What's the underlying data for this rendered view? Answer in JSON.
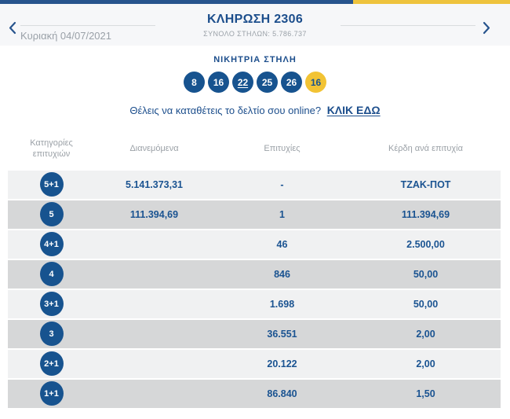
{
  "colors": {
    "bar_blue": "#27548d",
    "bar_yellow": "#eec33d",
    "title_blue": "#1c4e8c",
    "ball_blue": "#17538f",
    "ball_yellow": "#f2c334",
    "row_light": "#f0f1f2",
    "row_dark": "#d6d7d8",
    "muted_gray": "#9aa1a8"
  },
  "header": {
    "title": "ΚΛΗΡΩΣΗ 2306",
    "subtitle": "ΣΥΝΟΛΟ ΣΤΗΛΩΝ: 5.786.737",
    "date": "Κυριακή 04/07/2021",
    "prev_icon": "chevron-left",
    "next_icon": "chevron-right"
  },
  "winning": {
    "title": "ΝΙΚΗΤΡΙΑ ΣΤΗΛΗ",
    "numbers": [
      {
        "value": "8",
        "underline": false
      },
      {
        "value": "16",
        "underline": false
      },
      {
        "value": "22",
        "underline": true
      },
      {
        "value": "25",
        "underline": false
      },
      {
        "value": "26",
        "underline": false
      }
    ],
    "joker": {
      "value": "16"
    }
  },
  "online": {
    "text": "Θέλεις να καταθέτεις το δελτίο σου online?",
    "link": "ΚΛΙΚ ΕΔΩ"
  },
  "table": {
    "headers": [
      "Κατηγορίες επιτυχιών",
      "Διανεμόμενα",
      "Επιτυχίες",
      "Κέρδη ανά επιτυχία"
    ],
    "rows": [
      {
        "category": "5+1",
        "distributed": "5.141.373,31",
        "winners": "-",
        "prize": "ΤΖΑΚ-ΠΟΤ"
      },
      {
        "category": "5",
        "distributed": "111.394,69",
        "winners": "1",
        "prize": "111.394,69"
      },
      {
        "category": "4+1",
        "distributed": "",
        "winners": "46",
        "prize": "2.500,00"
      },
      {
        "category": "4",
        "distributed": "",
        "winners": "846",
        "prize": "50,00"
      },
      {
        "category": "3+1",
        "distributed": "",
        "winners": "1.698",
        "prize": "50,00"
      },
      {
        "category": "3",
        "distributed": "",
        "winners": "36.551",
        "prize": "2,00"
      },
      {
        "category": "2+1",
        "distributed": "",
        "winners": "20.122",
        "prize": "2,00"
      },
      {
        "category": "1+1",
        "distributed": "",
        "winners": "86.840",
        "prize": "1,50"
      }
    ]
  }
}
